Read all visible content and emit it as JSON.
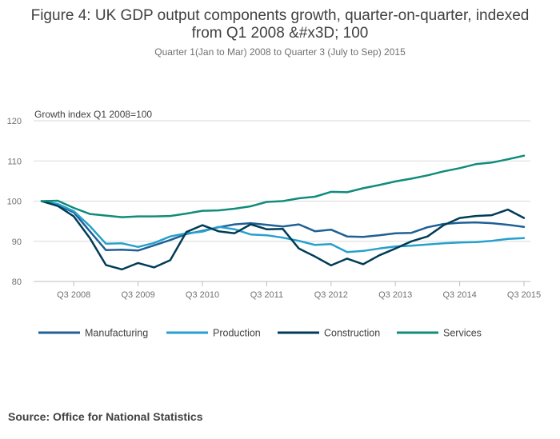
{
  "chart_data": {
    "type": "line",
    "title_lines": [
      "Figure 4: UK GDP output components growth, quarter-on-quarter, indexed",
      "from Q1 2008 &#x3D; 100"
    ],
    "subtitle": "Quarter 1(Jan to Mar) 2008 to Quarter 3 (July to Sep) 2015",
    "ylabel": "Growth index Q1 2008=100",
    "ylim": [
      80,
      120
    ],
    "yticks": [
      80,
      90,
      100,
      110,
      120
    ],
    "categories": [
      "Q1 2008",
      "Q2 2008",
      "Q3 2008",
      "Q4 2008",
      "Q1 2009",
      "Q2 2009",
      "Q3 2009",
      "Q4 2009",
      "Q1 2010",
      "Q2 2010",
      "Q3 2010",
      "Q4 2010",
      "Q1 2011",
      "Q2 2011",
      "Q3 2011",
      "Q4 2011",
      "Q1 2012",
      "Q2 2012",
      "Q3 2012",
      "Q4 2012",
      "Q1 2013",
      "Q2 2013",
      "Q3 2013",
      "Q4 2013",
      "Q1 2014",
      "Q2 2014",
      "Q3 2014",
      "Q4 2014",
      "Q1 2015",
      "Q2 2015",
      "Q3 2015"
    ],
    "xtick_labels": [
      "Q3 2008",
      "Q3 2009",
      "Q3 2010",
      "Q3 2011",
      "Q3 2012",
      "Q3 2013",
      "Q3 2014",
      "Q3 2015"
    ],
    "xtick_indices": [
      2,
      6,
      10,
      14,
      18,
      22,
      26,
      30
    ],
    "series": [
      {
        "name": "Manufacturing",
        "color": "#206095",
        "values": [
          100,
          99.0,
          97.2,
          92.5,
          87.8,
          87.9,
          87.7,
          89.0,
          90.3,
          91.8,
          92.6,
          93.5,
          94.2,
          94.5,
          94.1,
          93.7,
          94.2,
          92.5,
          92.9,
          91.2,
          91.1,
          91.5,
          92.0,
          92.1,
          93.5,
          94.3,
          94.6,
          94.7,
          94.5,
          94.1,
          93.6
        ]
      },
      {
        "name": "Production",
        "color": "#27a0cc",
        "values": [
          100,
          99.3,
          97.5,
          93.8,
          89.4,
          89.5,
          88.6,
          89.6,
          91.2,
          92.0,
          92.4,
          93.6,
          93.0,
          91.7,
          91.5,
          90.9,
          90.1,
          89.1,
          89.3,
          87.3,
          87.6,
          88.2,
          88.7,
          88.9,
          89.2,
          89.5,
          89.7,
          89.8,
          90.1,
          90.6,
          90.8
        ]
      },
      {
        "name": "Construction",
        "color": "#003c57",
        "values": [
          100,
          98.8,
          96.2,
          90.8,
          84.1,
          83.0,
          84.6,
          83.5,
          85.3,
          92.3,
          94.0,
          92.5,
          92.0,
          94.2,
          93.0,
          93.1,
          88.2,
          86.2,
          84.0,
          85.7,
          84.3,
          86.5,
          88.2,
          90.0,
          91.2,
          94.0,
          95.8,
          96.3,
          96.5,
          97.9,
          95.8
        ]
      },
      {
        "name": "Services",
        "color": "#118c7b",
        "values": [
          100,
          100.1,
          98.3,
          96.8,
          96.4,
          96.0,
          96.2,
          96.2,
          96.3,
          96.9,
          97.6,
          97.7,
          98.1,
          98.7,
          99.8,
          100.0,
          100.7,
          101.1,
          102.3,
          102.2,
          103.2,
          104.0,
          104.9,
          105.6,
          106.4,
          107.4,
          108.2,
          109.2,
          109.6,
          110.4,
          111.3
        ]
      }
    ],
    "legend_position": "bottom",
    "grid": true
  },
  "source": "Source: Office for National Statistics"
}
